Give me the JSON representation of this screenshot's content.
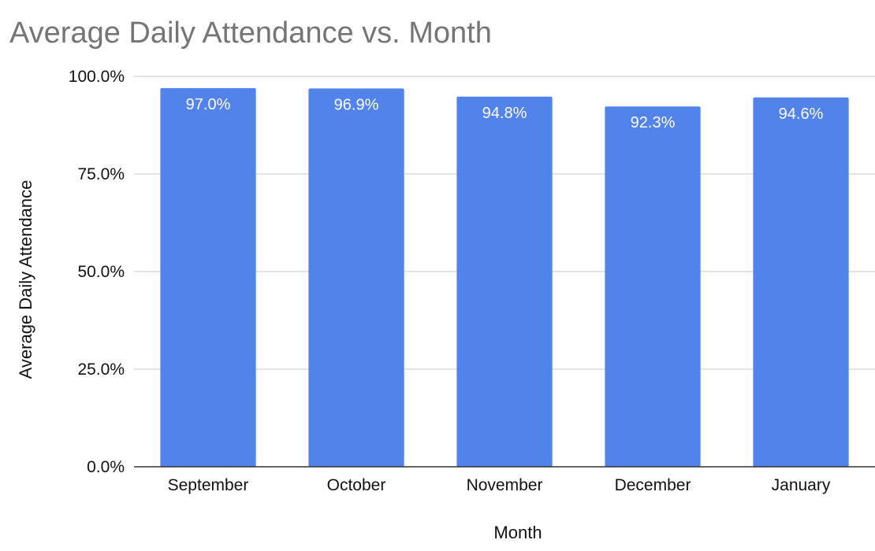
{
  "chart_data": {
    "type": "bar",
    "title": "Average Daily Attendance vs. Month",
    "xlabel": "Month",
    "ylabel": "Average Daily Attendance",
    "categories": [
      "September",
      "October",
      "November",
      "December",
      "January"
    ],
    "values": [
      97.0,
      96.9,
      94.8,
      92.3,
      94.6
    ],
    "data_labels": [
      "97.0%",
      "96.9%",
      "94.8%",
      "92.3%",
      "94.6%"
    ],
    "ylim": [
      0,
      100
    ],
    "yticks": [
      0,
      25,
      50,
      75,
      100
    ],
    "ytick_labels": [
      "0.0%",
      "25.0%",
      "50.0%",
      "75.0%",
      "100.0%"
    ],
    "grid": true,
    "legend": "none",
    "colors": {
      "bar": "#5283ea",
      "grid": "#c9c9c9",
      "axis": "#333333",
      "title": "#757575",
      "text": "#111111",
      "data_label": "#ffffff"
    }
  }
}
